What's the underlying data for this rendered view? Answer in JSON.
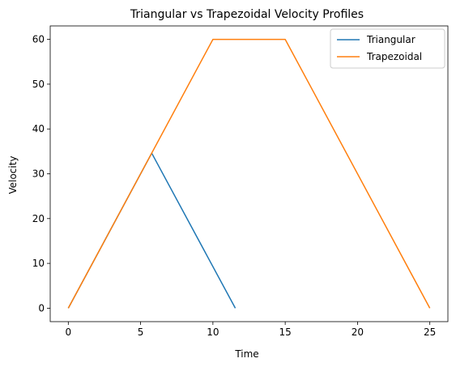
{
  "chart_data": {
    "type": "line",
    "title": "Triangular vs Trapezoidal Velocity Profiles",
    "xlabel": "Time",
    "ylabel": "Velocity",
    "xlim": [
      -1.25,
      26.25
    ],
    "ylim": [
      -3,
      63
    ],
    "xticks": [
      0,
      5,
      10,
      15,
      20,
      25
    ],
    "yticks": [
      0,
      10,
      20,
      30,
      40,
      50,
      60
    ],
    "grid": false,
    "legend_position": "top-right",
    "series": [
      {
        "name": "Triangular",
        "color": "#1f77b4",
        "x": [
          0,
          5.77,
          11.55
        ],
        "y": [
          0,
          34.6,
          0
        ]
      },
      {
        "name": "Trapezoidal",
        "color": "#ff7f0e",
        "x": [
          0,
          10,
          15,
          25
        ],
        "y": [
          0,
          60,
          60,
          0
        ]
      }
    ]
  }
}
